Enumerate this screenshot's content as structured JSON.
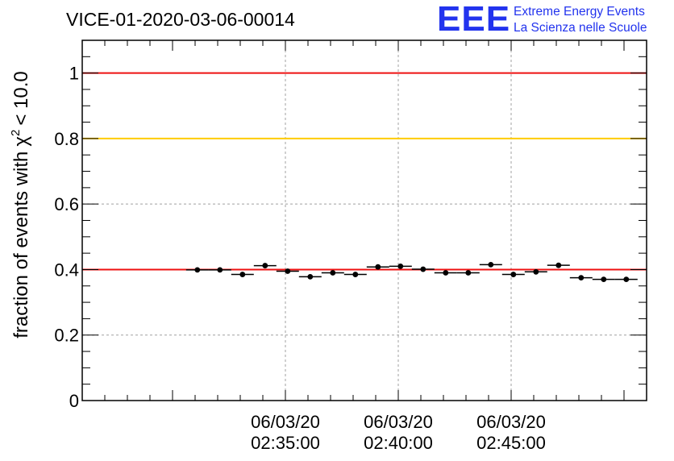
{
  "chart_data": {
    "type": "scatter",
    "title": "VICE-01-2020-03-06-00014",
    "ylabel": "fraction of events with",
    "ylabel_symbol": "χ",
    "ylabel_power": "2",
    "ylabel_threshold": "< 10.0",
    "x_unit": "minutes",
    "xlim": [
      -9.0,
      16.0
    ],
    "ylim": [
      0,
      1.1
    ],
    "yticks": [
      {
        "value": 0,
        "label": "0"
      },
      {
        "value": 0.2,
        "label": "0.2"
      },
      {
        "value": 0.4,
        "label": "0.4"
      },
      {
        "value": 0.6,
        "label": "0.6"
      },
      {
        "value": 0.8,
        "label": "0.8"
      },
      {
        "value": 1,
        "label": "1"
      }
    ],
    "xticks": [
      {
        "value": 0,
        "date": "06/03/20",
        "time": "02:35:00"
      },
      {
        "value": 5,
        "date": "06/03/20",
        "time": "02:40:00"
      },
      {
        "value": 10,
        "date": "06/03/20",
        "time": "02:45:00"
      }
    ],
    "grid": true,
    "reference_lines": [
      {
        "y": 1.0,
        "color": "#ee1111"
      },
      {
        "y": 0.8,
        "color": "#ffcc00"
      },
      {
        "y": 0.4,
        "color": "#ee1111"
      }
    ],
    "bin_halfwidth": 0.5,
    "x": [
      -3.9,
      -2.9,
      -1.9,
      -0.9,
      0.1,
      1.1,
      2.1,
      3.1,
      4.1,
      5.1,
      6.1,
      7.1,
      8.1,
      9.1,
      10.1,
      11.1,
      12.1,
      13.1,
      14.1,
      15.1
    ],
    "y": [
      0.399,
      0.399,
      0.385,
      0.412,
      0.395,
      0.378,
      0.39,
      0.385,
      0.408,
      0.41,
      0.401,
      0.39,
      0.39,
      0.415,
      0.385,
      0.393,
      0.413,
      0.375,
      0.37,
      0.37
    ]
  },
  "logo": {
    "big": "EEE",
    "line1": "Extreme Energy Events",
    "line2": "La Scienza nelle Scuole"
  }
}
